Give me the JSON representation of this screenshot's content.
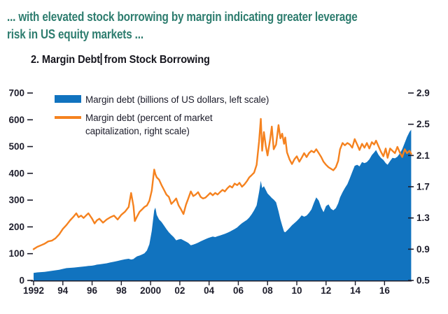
{
  "headline": {
    "line1": "... with elevated stock borrowing by margin indicating greater leverage",
    "line2": "risk in US equity markets ...",
    "color": "#2E7D6F"
  },
  "chart_title": {
    "part1": "2. Margin Debt",
    "part2": "from Stock Borrowing",
    "color": "#15151D"
  },
  "legend": {
    "series1_label": "Margin debt (billions of US dollars, left scale)",
    "series2_line1": "Margin debt (percent of market",
    "series2_line2": "capitalization, right scale)",
    "text_color": "#1D1D2B"
  },
  "colors": {
    "debt_fill": "#1173BF",
    "pct_line": "#F5821F",
    "axis": "#1D1D2B"
  },
  "chart_data": {
    "type": "area+line",
    "title": "2. Margin Debt from Stock Borrowing",
    "grid": false,
    "legend_position": "top-left-inside",
    "x_range": [
      1992,
      2017.85
    ],
    "x_tick_years": [
      1992,
      1994,
      1996,
      1998,
      2000,
      2002,
      2004,
      2006,
      2008,
      2010,
      2012,
      2014,
      2016
    ],
    "x_tick_labels": [
      "1992",
      "94",
      "96",
      "98",
      "2000",
      "02",
      "04",
      "06",
      "08",
      "10",
      "12",
      "14",
      "16"
    ],
    "left_axis": {
      "range": [
        0,
        700
      ],
      "ticks": [
        0,
        100,
        200,
        300,
        400,
        500,
        600,
        700
      ],
      "label": "Margin debt (billions of US dollars)"
    },
    "right_axis": {
      "range": [
        0.5,
        2.9
      ],
      "ticks": [
        0.5,
        0.9,
        1.3,
        1.7,
        2.1,
        2.5,
        2.9
      ],
      "label": "Margin debt (percent of market capitalization)"
    },
    "x": [
      1992.0,
      1992.25,
      1992.5,
      1992.75,
      1993.0,
      1993.25,
      1993.5,
      1993.75,
      1994.0,
      1994.25,
      1994.5,
      1994.75,
      1994.92,
      1995.08,
      1995.25,
      1995.42,
      1995.58,
      1995.75,
      1996.0,
      1996.17,
      1996.33,
      1996.5,
      1996.75,
      1997.0,
      1997.25,
      1997.5,
      1997.75,
      1998.0,
      1998.25,
      1998.5,
      1998.67,
      1998.83,
      1998.92,
      1999.08,
      1999.25,
      1999.42,
      1999.58,
      1999.75,
      1999.92,
      2000.08,
      2000.25,
      2000.33,
      2000.42,
      2000.58,
      2000.75,
      2000.92,
      2001.08,
      2001.25,
      2001.42,
      2001.58,
      2001.75,
      2001.92,
      2002.08,
      2002.25,
      2002.42,
      2002.58,
      2002.75,
      2002.92,
      2003.08,
      2003.25,
      2003.42,
      2003.58,
      2003.75,
      2003.92,
      2004.08,
      2004.25,
      2004.42,
      2004.58,
      2004.75,
      2004.92,
      2005.08,
      2005.25,
      2005.42,
      2005.58,
      2005.75,
      2005.92,
      2006.08,
      2006.25,
      2006.42,
      2006.58,
      2006.75,
      2006.92,
      2007.08,
      2007.25,
      2007.42,
      2007.54,
      2007.63,
      2007.75,
      2007.88,
      2008.0,
      2008.17,
      2008.29,
      2008.42,
      2008.58,
      2008.75,
      2008.88,
      2009.0,
      2009.13,
      2009.21,
      2009.33,
      2009.5,
      2009.67,
      2009.83,
      2010.0,
      2010.17,
      2010.33,
      2010.5,
      2010.67,
      2010.83,
      2011.0,
      2011.17,
      2011.33,
      2011.5,
      2011.67,
      2011.83,
      2012.0,
      2012.17,
      2012.33,
      2012.5,
      2012.67,
      2012.83,
      2012.96,
      2013.13,
      2013.29,
      2013.46,
      2013.63,
      2013.79,
      2013.96,
      2014.13,
      2014.29,
      2014.46,
      2014.63,
      2014.79,
      2014.96,
      2015.13,
      2015.29,
      2015.42,
      2015.58,
      2015.75,
      2015.92,
      2016.08,
      2016.21,
      2016.38,
      2016.54,
      2016.71,
      2016.88,
      2017.04,
      2017.21,
      2017.38,
      2017.54,
      2017.71,
      2017.82
    ],
    "series": [
      {
        "name": "Margin debt (billions of US dollars, left scale)",
        "type": "area",
        "axis": "left",
        "color": "#1173BF",
        "values": [
          28,
          30,
          31,
          32,
          34,
          36,
          38,
          40,
          43,
          46,
          47,
          48,
          49,
          50,
          51,
          52,
          53,
          54,
          55,
          57,
          59,
          60,
          62,
          64,
          67,
          70,
          73,
          76,
          79,
          81,
          78,
          80,
          84,
          90,
          93,
          97,
          101,
          112,
          135,
          185,
          262,
          272,
          245,
          228,
          218,
          205,
          192,
          180,
          170,
          162,
          150,
          153,
          155,
          150,
          145,
          140,
          131,
          134,
          137,
          141,
          146,
          150,
          154,
          158,
          161,
          164,
          162,
          165,
          168,
          171,
          174,
          178,
          182,
          187,
          192,
          198,
          206,
          214,
          220,
          226,
          235,
          248,
          262,
          280,
          330,
          372,
          345,
          352,
          338,
          325,
          315,
          308,
          302,
          292,
          258,
          228,
          205,
          182,
          180,
          186,
          196,
          206,
          214,
          222,
          232,
          243,
          238,
          242,
          252,
          265,
          290,
          310,
          298,
          272,
          255,
          278,
          284,
          268,
          262,
          270,
          288,
          310,
          330,
          345,
          360,
          382,
          405,
          428,
          432,
          426,
          442,
          438,
          442,
          452,
          468,
          478,
          487,
          470,
          458,
          450,
          438,
          432,
          446,
          458,
          456,
          462,
          474,
          490,
          514,
          536,
          555,
          563
        ]
      },
      {
        "name": "Margin debt (percent of market capitalization, right scale)",
        "type": "line",
        "axis": "right",
        "color": "#F5821F",
        "values": [
          0.9,
          0.93,
          0.95,
          0.97,
          1.0,
          1.01,
          1.04,
          1.09,
          1.16,
          1.21,
          1.27,
          1.32,
          1.36,
          1.31,
          1.33,
          1.3,
          1.33,
          1.36,
          1.29,
          1.23,
          1.27,
          1.29,
          1.24,
          1.28,
          1.31,
          1.33,
          1.28,
          1.34,
          1.38,
          1.44,
          1.62,
          1.45,
          1.26,
          1.32,
          1.38,
          1.41,
          1.44,
          1.46,
          1.52,
          1.65,
          1.92,
          1.86,
          1.82,
          1.79,
          1.72,
          1.66,
          1.6,
          1.57,
          1.48,
          1.51,
          1.55,
          1.46,
          1.41,
          1.35,
          1.47,
          1.55,
          1.64,
          1.58,
          1.6,
          1.63,
          1.57,
          1.55,
          1.56,
          1.59,
          1.62,
          1.59,
          1.62,
          1.6,
          1.63,
          1.66,
          1.64,
          1.68,
          1.71,
          1.69,
          1.74,
          1.72,
          1.75,
          1.7,
          1.73,
          1.77,
          1.82,
          1.85,
          1.88,
          1.98,
          2.28,
          2.57,
          2.16,
          2.4,
          2.22,
          2.1,
          2.3,
          2.47,
          2.18,
          2.24,
          2.49,
          2.32,
          2.38,
          2.25,
          2.33,
          2.14,
          2.05,
          1.99,
          2.05,
          2.09,
          2.02,
          2.07,
          2.13,
          2.08,
          2.13,
          2.16,
          2.14,
          2.18,
          2.13,
          2.08,
          2.02,
          1.98,
          1.95,
          1.93,
          1.91,
          1.95,
          2.03,
          2.18,
          2.26,
          2.23,
          2.26,
          2.24,
          2.2,
          2.31,
          2.24,
          2.17,
          2.25,
          2.2,
          2.26,
          2.19,
          2.27,
          2.24,
          2.29,
          2.22,
          2.15,
          2.09,
          2.19,
          2.07,
          2.19,
          2.16,
          2.13,
          2.21,
          2.14,
          2.08,
          2.18,
          2.13,
          2.16,
          2.12
        ]
      }
    ]
  }
}
